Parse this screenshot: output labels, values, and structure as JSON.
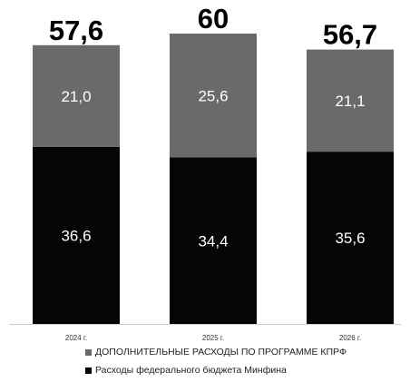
{
  "chart_data": {
    "type": "bar",
    "stacked": true,
    "categories": [
      "2024 г.",
      "2025 г.",
      "2026 г."
    ],
    "series": [
      {
        "name": "Расходы федерального бюджета Минфина",
        "values": [
          36.6,
          34.4,
          35.6
        ],
        "labels": [
          "36,6",
          "34,4",
          "35,6"
        ],
        "color": "#050505",
        "label_color": "#ffffff"
      },
      {
        "name": "ДОПОЛНИТЕЛЬНЫЕ РАСХОДЫ ПО ПРОГРАММЕ КПРФ",
        "values": [
          21.0,
          25.6,
          21.1
        ],
        "labels": [
          "21,0",
          "25,6",
          "21,1"
        ],
        "color": "#6a6a6a",
        "label_color": "#ffffff"
      }
    ],
    "totals": [
      "57,6",
      "60",
      "56,7"
    ],
    "total_values": [
      57.6,
      60,
      56.7
    ],
    "ylim": [
      0,
      60
    ],
    "grid": false,
    "legend_position": "bottom",
    "legend_order": [
      "ДОПОЛНИТЕЛЬНЫЕ РАСХОДЫ ПО ПРОГРАММЕ КПРФ",
      "Расходы федерального бюджета Минфина"
    ]
  }
}
